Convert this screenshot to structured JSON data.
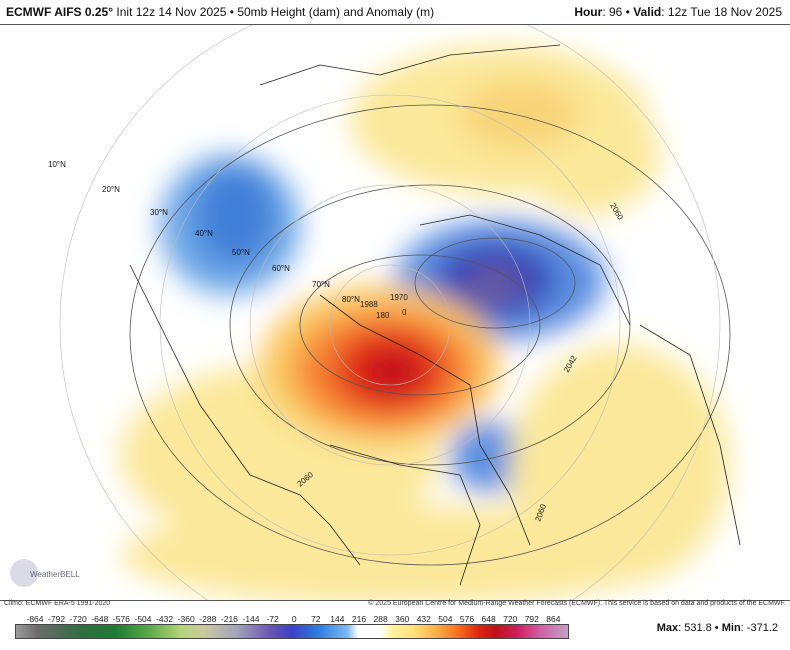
{
  "header": {
    "model": "ECMWF AIFS 0.25°",
    "init": "Init 12z 14 Nov 2025 • 50mb Height (dam) and Anomaly (m)",
    "hour_label": "Hour",
    "hour": "96",
    "valid_label": "Valid",
    "valid": "12z Tue 18 Nov 2025"
  },
  "map": {
    "latitude_labels": [
      "10°N",
      "20°N",
      "30°N",
      "40°N",
      "50°N",
      "60°N",
      "70°N",
      "80°N"
    ],
    "contour_labels": [
      "2060",
      "2060",
      "2060",
      "2042",
      "1970",
      "1988",
      "180",
      "0"
    ],
    "logo_text": "WeatherBELL",
    "colors": {
      "positive_max": "#c0101a",
      "negative_max": "#3a42c8",
      "land_line": "#111111"
    }
  },
  "footer": {
    "climo": "Climo: ECMWF ERA-5 1991-2020",
    "copyright": "© 2025 European Centre for Medium-Range Weather Forecasts (ECMWF). This service is based on data and products of the ECMWF."
  },
  "colorbar": {
    "ticks": [
      "-864",
      "-792",
      "-720",
      "-648",
      "-576",
      "-504",
      "-432",
      "-360",
      "-288",
      "-216",
      "-144",
      "-72",
      "0",
      "72",
      "144",
      "216",
      "288",
      "360",
      "432",
      "504",
      "576",
      "648",
      "720",
      "792",
      "864"
    ]
  },
  "stats": {
    "max_label": "Max",
    "max": "531.8",
    "min_label": "Min",
    "min": "-371.2"
  }
}
